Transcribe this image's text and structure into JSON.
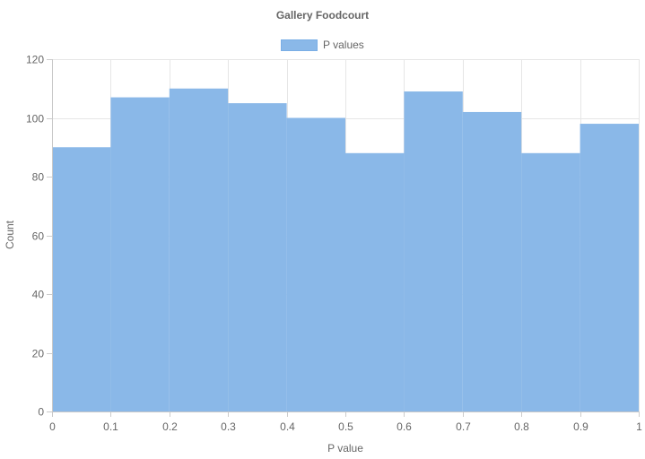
{
  "chart_data": {
    "type": "bar",
    "title": "Gallery Foodcourt",
    "xlabel": "P value",
    "ylabel": "Count",
    "legend_position": "top",
    "grid": true,
    "xlim": [
      0,
      1
    ],
    "ylim": [
      0,
      120
    ],
    "x_ticks": [
      "0",
      "0.1",
      "0.2",
      "0.3",
      "0.4",
      "0.5",
      "0.6",
      "0.7",
      "0.8",
      "0.9",
      "1"
    ],
    "y_ticks": [
      "0",
      "20",
      "40",
      "60",
      "80",
      "100",
      "120"
    ],
    "bin_edges": [
      0,
      0.1,
      0.2,
      0.3,
      0.4,
      0.5,
      0.6,
      0.7,
      0.8,
      0.9,
      1.0
    ],
    "series": [
      {
        "name": "P values",
        "color": "#8ab8e8",
        "values": [
          90,
          107,
          110,
          105,
          100,
          88,
          109,
          102,
          88,
          98
        ]
      }
    ]
  }
}
